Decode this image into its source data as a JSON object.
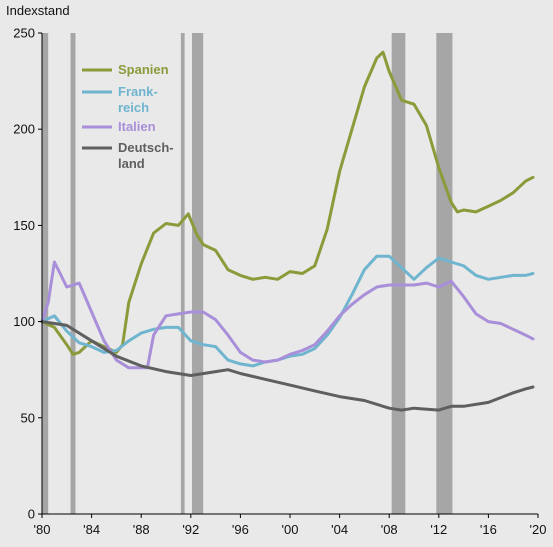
{
  "chart_data": {
    "type": "line",
    "title": "",
    "ylabel": "Indexstand",
    "xlabel": "",
    "xlim": [
      1980,
      2020
    ],
    "ylim": [
      0,
      250
    ],
    "yticks": [
      0,
      50,
      100,
      150,
      200,
      250
    ],
    "ytick_labels": [
      "0",
      "50",
      "100",
      "150",
      "200",
      "250"
    ],
    "xticks": [
      1980,
      1984,
      1988,
      1992,
      1996,
      2000,
      2004,
      2008,
      2012,
      2016,
      2020
    ],
    "xtick_labels": [
      "'80",
      "'84",
      "'88",
      "'92",
      "'96",
      "'00",
      "'04",
      "'08",
      "'12",
      "'16",
      "'20"
    ],
    "grid": false,
    "legend_position": "top-left",
    "recession_periods": [
      [
        1980.0,
        1980.5
      ],
      [
        1982.3,
        1982.7
      ],
      [
        1991.2,
        1991.5
      ],
      [
        1992.1,
        1993.0
      ],
      [
        2008.2,
        2009.3
      ],
      [
        2011.8,
        2013.1
      ]
    ],
    "recession_color": "#a6a6a6",
    "series": [
      {
        "name": "Spanien",
        "name_lines": [
          "Spanien"
        ],
        "color": "#8c9a3a",
        "x": [
          1980,
          1981,
          1982,
          1982.5,
          1983,
          1984,
          1985,
          1986,
          1986.5,
          1987,
          1988,
          1989,
          1990,
          1991,
          1991.8,
          1992.5,
          1993,
          1994,
          1995,
          1996,
          1997,
          1998,
          1999,
          2000,
          2001,
          2002,
          2003,
          2004,
          2005,
          2006,
          2007,
          2007.5,
          2008,
          2009,
          2010,
          2011,
          2012,
          2013,
          2013.5,
          2014,
          2015,
          2016,
          2017,
          2018,
          2019,
          2019.6
        ],
        "y": [
          100,
          97,
          88,
          83,
          84,
          90,
          87,
          84,
          88,
          110,
          130,
          146,
          151,
          150,
          156,
          145,
          140,
          137,
          127,
          124,
          122,
          123,
          122,
          126,
          125,
          129,
          148,
          178,
          200,
          222,
          237,
          240,
          230,
          215,
          213,
          202,
          180,
          162,
          157,
          158,
          157,
          160,
          163,
          167,
          173,
          175
        ]
      },
      {
        "name": "Frankreich",
        "name_lines": [
          "Frank-",
          "reich"
        ],
        "color": "#6fb5cf",
        "x": [
          1980,
          1981,
          1982,
          1983,
          1984,
          1985,
          1986,
          1987,
          1988,
          1989,
          1990,
          1991,
          1992,
          1993,
          1994,
          1995,
          1996,
          1997,
          1998,
          1999,
          2000,
          2001,
          2002,
          2003,
          2004,
          2005,
          2006,
          2007,
          2008,
          2009,
          2010,
          2011,
          2012,
          2013,
          2014,
          2015,
          2016,
          2017,
          2018,
          2019,
          2019.6
        ],
        "y": [
          100,
          103,
          95,
          89,
          87,
          84,
          85,
          90,
          94,
          96,
          97,
          97,
          90,
          88,
          87,
          80,
          78,
          77,
          79,
          80,
          82,
          83,
          86,
          93,
          102,
          114,
          127,
          134,
          134,
          128,
          122,
          128,
          133,
          131,
          129,
          124,
          122,
          123,
          124,
          124,
          125
        ]
      },
      {
        "name": "Italien",
        "name_lines": [
          "Italien"
        ],
        "color": "#a98fd9",
        "x": [
          1980,
          1980.5,
          1981,
          1982,
          1983,
          1984,
          1985,
          1986,
          1987,
          1988,
          1988.5,
          1989,
          1990,
          1991,
          1992,
          1993,
          1994,
          1995,
          1996,
          1997,
          1998,
          1999,
          2000,
          2001,
          2002,
          2003,
          2004,
          2005,
          2006,
          2007,
          2008,
          2009,
          2010,
          2011,
          2012,
          2013,
          2014,
          2015,
          2016,
          2017,
          2018,
          2019,
          2019.6
        ],
        "y": [
          100,
          110,
          131,
          118,
          120,
          105,
          90,
          80,
          76,
          76,
          76,
          93,
          103,
          104,
          105,
          105,
          101,
          93,
          84,
          80,
          79,
          80,
          83,
          85,
          88,
          95,
          103,
          109,
          114,
          118,
          119,
          119,
          119,
          120,
          118,
          121,
          113,
          104,
          100,
          99,
          96,
          93,
          91
        ]
      },
      {
        "name": "Deutschland",
        "name_lines": [
          "Deutsch-",
          "land"
        ],
        "color": "#5f5f5f",
        "x": [
          1980,
          1982,
          1984,
          1986,
          1988,
          1990,
          1992,
          1994,
          1995,
          1996,
          1998,
          2000,
          2002,
          2004,
          2006,
          2008,
          2009,
          2010,
          2012,
          2013,
          2014,
          2016,
          2018,
          2019,
          2019.6
        ],
        "y": [
          100,
          98,
          90,
          82,
          77,
          74,
          72,
          74,
          75,
          73,
          70,
          67,
          64,
          61,
          59,
          55,
          54,
          55,
          54,
          56,
          56,
          58,
          63,
          65,
          66
        ]
      }
    ]
  }
}
